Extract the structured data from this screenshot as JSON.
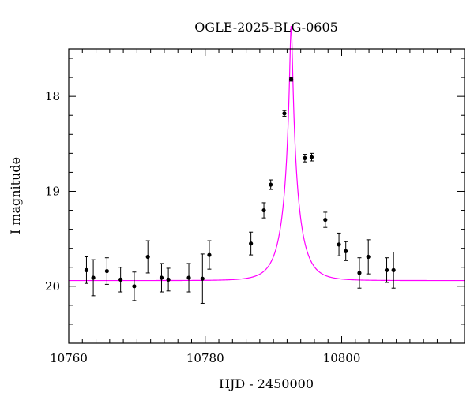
{
  "chart_data": {
    "type": "scatter",
    "title": "OGLE-2025-BLG-0605",
    "xlabel": "HJD - 2450000",
    "ylabel": "I magnitude",
    "xlim": [
      10760,
      10818
    ],
    "ylim": [
      20.6,
      17.5
    ],
    "y_inverted": true,
    "x_ticks": [
      10760,
      10780,
      10800
    ],
    "y_ticks": [
      18,
      19,
      20
    ],
    "x_minor_step": 2,
    "y_minor_step": 0.2,
    "grid": false,
    "legend": "none",
    "colors": {
      "points": "#000000",
      "errorbars": "#000000",
      "model": "#ff00ff",
      "axes": "#000000"
    },
    "series": [
      {
        "type": "errorbar",
        "points": [
          {
            "x": 10762.6,
            "y": 19.83,
            "err": 0.14
          },
          {
            "x": 10763.6,
            "y": 19.91,
            "err": 0.19
          },
          {
            "x": 10765.6,
            "y": 19.84,
            "err": 0.14
          },
          {
            "x": 10767.6,
            "y": 19.93,
            "err": 0.13
          },
          {
            "x": 10769.6,
            "y": 20.0,
            "err": 0.15
          },
          {
            "x": 10771.6,
            "y": 19.69,
            "err": 0.17
          },
          {
            "x": 10773.6,
            "y": 19.91,
            "err": 0.15
          },
          {
            "x": 10774.6,
            "y": 19.93,
            "err": 0.12
          },
          {
            "x": 10777.6,
            "y": 19.91,
            "err": 0.15
          },
          {
            "x": 10779.6,
            "y": 19.92,
            "err": 0.26
          },
          {
            "x": 10780.6,
            "y": 19.67,
            "err": 0.15
          },
          {
            "x": 10786.7,
            "y": 19.55,
            "err": 0.12
          },
          {
            "x": 10788.6,
            "y": 19.2,
            "err": 0.08
          },
          {
            "x": 10789.6,
            "y": 18.93,
            "err": 0.05
          },
          {
            "x": 10791.6,
            "y": 18.18,
            "err": 0.03
          },
          {
            "x": 10792.6,
            "y": 17.82,
            "err": 0.02
          },
          {
            "x": 10794.6,
            "y": 18.65,
            "err": 0.04
          },
          {
            "x": 10795.6,
            "y": 18.64,
            "err": 0.04
          },
          {
            "x": 10797.6,
            "y": 19.3,
            "err": 0.08
          },
          {
            "x": 10799.6,
            "y": 19.56,
            "err": 0.12
          },
          {
            "x": 10800.6,
            "y": 19.63,
            "err": 0.1
          },
          {
            "x": 10802.6,
            "y": 19.86,
            "err": 0.16
          },
          {
            "x": 10803.9,
            "y": 19.69,
            "err": 0.18
          },
          {
            "x": 10806.6,
            "y": 19.83,
            "err": 0.13
          },
          {
            "x": 10807.6,
            "y": 19.83,
            "err": 0.19
          }
        ]
      },
      {
        "type": "line",
        "model": "pspl",
        "t0": 10792.6,
        "u0": 0.072,
        "tE": 2.5,
        "I_base": 19.94,
        "blend_fraction": 0.84
      }
    ]
  }
}
